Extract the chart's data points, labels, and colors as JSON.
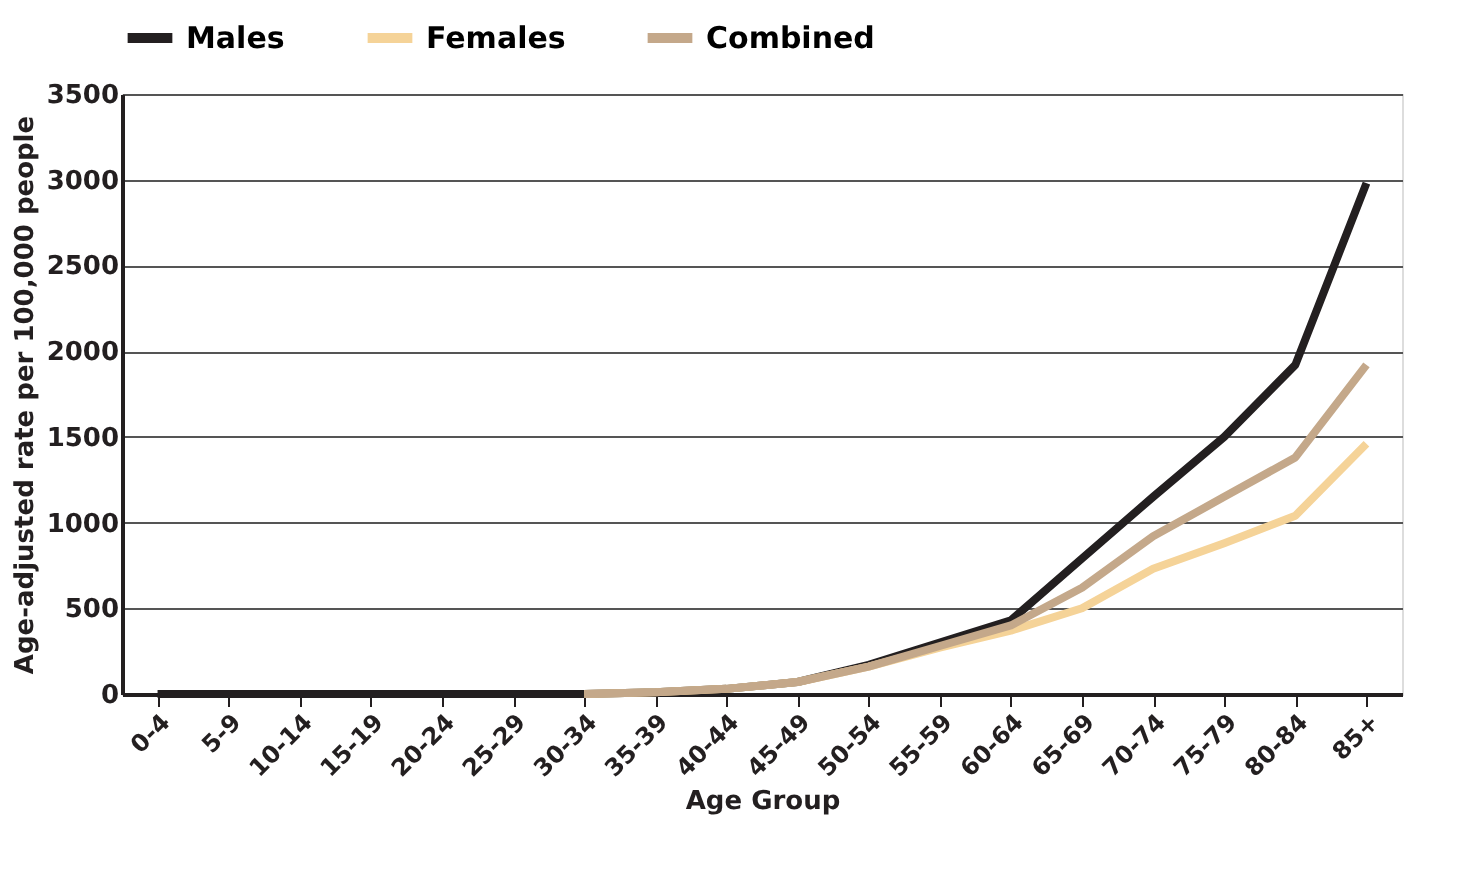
{
  "chart_data": {
    "type": "line",
    "xlabel": "Age Group",
    "ylabel": "Age-adjusted rate per 100,000 people",
    "categories": [
      "0-4",
      "5-9",
      "10-14",
      "15-19",
      "20-24",
      "25-29",
      "30-34",
      "35-39",
      "40-44",
      "45-49",
      "50-54",
      "55-59",
      "60-64",
      "65-69",
      "70-74",
      "75-79",
      "80-84",
      "85+"
    ],
    "series": [
      {
        "name": "Males",
        "color": "#231f20",
        "values": [
          0,
          0,
          0,
          0,
          0,
          0,
          0,
          10,
          30,
          70,
          170,
          300,
          430,
          790,
          1150,
          1500,
          1920,
          2980
        ]
      },
      {
        "name": "Females",
        "color": "#f5d398",
        "values": [
          null,
          null,
          null,
          null,
          null,
          null,
          0,
          10,
          30,
          70,
          160,
          270,
          370,
          500,
          730,
          880,
          1040,
          1460
        ]
      },
      {
        "name": "Combined",
        "color": "#c4a88a",
        "values": [
          null,
          null,
          null,
          null,
          null,
          null,
          0,
          10,
          30,
          70,
          160,
          280,
          400,
          620,
          920,
          1150,
          1380,
          1920
        ]
      }
    ],
    "ylim": [
      0,
      3500
    ],
    "yticks": [
      0,
      500,
      1000,
      1500,
      2000,
      2500,
      3000,
      3500
    ],
    "grid": "y",
    "legend": "top left",
    "marker": "none",
    "line_style": "solid"
  }
}
